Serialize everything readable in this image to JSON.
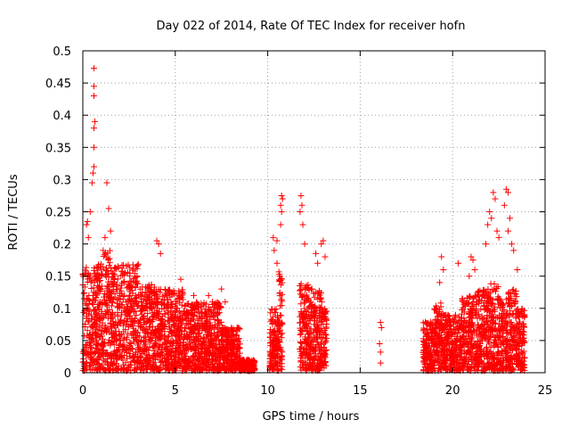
{
  "chart_data": {
    "type": "scatter",
    "title": "Day 022 of 2014, Rate Of TEC Index for receiver hofn",
    "xlabel": "GPS time / hours",
    "ylabel": "ROTI / TECUs",
    "xlim": [
      0,
      25
    ],
    "ylim": [
      0,
      0.5
    ],
    "xticks": [
      "0",
      "5",
      "10",
      "15",
      "20",
      "25"
    ],
    "yticks": [
      "0",
      "0.05",
      "0.1",
      "0.15",
      "0.2",
      "0.25",
      "0.3",
      "0.35",
      "0.4",
      "0.45",
      "0.5"
    ],
    "grid": true,
    "marker": "+",
    "color": "#ff0000",
    "series": [
      {
        "name": "ROTI",
        "points": [
          [
            0.2,
            0.23
          ],
          [
            0.25,
            0.235
          ],
          [
            0.3,
            0.21
          ],
          [
            0.4,
            0.25
          ],
          [
            0.5,
            0.295
          ],
          [
            0.55,
            0.31
          ],
          [
            0.6,
            0.32
          ],
          [
            0.6,
            0.35
          ],
          [
            0.6,
            0.38
          ],
          [
            0.65,
            0.39
          ],
          [
            0.6,
            0.43
          ],
          [
            0.6,
            0.445
          ],
          [
            0.6,
            0.473
          ],
          [
            1.3,
            0.295
          ],
          [
            1.4,
            0.255
          ],
          [
            1.5,
            0.22
          ],
          [
            1.2,
            0.21
          ],
          [
            1.1,
            0.19
          ],
          [
            4.0,
            0.205
          ],
          [
            4.1,
            0.2
          ],
          [
            4.2,
            0.185
          ],
          [
            5.3,
            0.145
          ],
          [
            6.0,
            0.12
          ],
          [
            6.8,
            0.12
          ],
          [
            7.5,
            0.13
          ],
          [
            7.7,
            0.11
          ],
          [
            10.3,
            0.21
          ],
          [
            10.35,
            0.19
          ],
          [
            10.5,
            0.205
          ],
          [
            10.5,
            0.17
          ],
          [
            10.75,
            0.275
          ],
          [
            10.8,
            0.27
          ],
          [
            10.7,
            0.26
          ],
          [
            10.75,
            0.25
          ],
          [
            10.7,
            0.23
          ],
          [
            11.8,
            0.275
          ],
          [
            11.85,
            0.26
          ],
          [
            11.75,
            0.25
          ],
          [
            11.9,
            0.23
          ],
          [
            12.0,
            0.2
          ],
          [
            12.6,
            0.185
          ],
          [
            12.9,
            0.2
          ],
          [
            13.0,
            0.205
          ],
          [
            13.1,
            0.18
          ],
          [
            12.7,
            0.17
          ],
          [
            16.1,
            0.078
          ],
          [
            16.15,
            0.07
          ],
          [
            16.05,
            0.045
          ],
          [
            16.1,
            0.032
          ],
          [
            16.1,
            0.015
          ],
          [
            19.4,
            0.18
          ],
          [
            19.5,
            0.16
          ],
          [
            19.3,
            0.14
          ],
          [
            20.3,
            0.17
          ],
          [
            21.0,
            0.18
          ],
          [
            21.1,
            0.175
          ],
          [
            21.2,
            0.16
          ],
          [
            20.9,
            0.15
          ],
          [
            21.8,
            0.2
          ],
          [
            21.9,
            0.23
          ],
          [
            22.0,
            0.25
          ],
          [
            22.2,
            0.28
          ],
          [
            22.3,
            0.27
          ],
          [
            22.1,
            0.24
          ],
          [
            22.4,
            0.22
          ],
          [
            22.5,
            0.21
          ],
          [
            22.9,
            0.285
          ],
          [
            23.0,
            0.28
          ],
          [
            22.8,
            0.26
          ],
          [
            23.1,
            0.24
          ],
          [
            23.0,
            0.22
          ],
          [
            23.2,
            0.2
          ],
          [
            23.3,
            0.19
          ],
          [
            23.5,
            0.16
          ]
        ]
      }
    ],
    "dense_segments": [
      [
        0.0,
        1.0,
        0.17
      ],
      [
        1.0,
        1.5,
        0.19
      ],
      [
        1.5,
        3.0,
        0.17
      ],
      [
        3.0,
        4.0,
        0.14
      ],
      [
        4.0,
        5.5,
        0.13
      ],
      [
        5.5,
        7.5,
        0.11
      ],
      [
        7.5,
        8.5,
        0.07
      ],
      [
        8.5,
        9.3,
        0.02
      ],
      [
        10.1,
        10.6,
        0.1
      ],
      [
        10.6,
        10.8,
        0.16
      ],
      [
        11.7,
        12.3,
        0.14
      ],
      [
        12.3,
        13.0,
        0.13
      ],
      [
        13.0,
        13.2,
        0.1
      ],
      [
        18.4,
        19.0,
        0.08
      ],
      [
        19.0,
        19.5,
        0.11
      ],
      [
        19.5,
        20.5,
        0.09
      ],
      [
        20.5,
        21.3,
        0.12
      ],
      [
        21.3,
        22.0,
        0.13
      ],
      [
        22.0,
        22.5,
        0.14
      ],
      [
        22.5,
        23.0,
        0.12
      ],
      [
        23.0,
        23.5,
        0.13
      ],
      [
        23.5,
        23.9,
        0.1
      ]
    ]
  }
}
